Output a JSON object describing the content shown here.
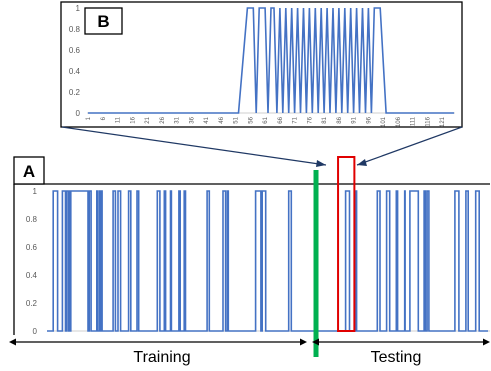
{
  "panels": {
    "a_label": "A",
    "b_label": "B"
  },
  "bottom_labels": {
    "training": "Training",
    "testing": "Testing"
  },
  "colors": {
    "series": "#4472C4",
    "split_line": "#00B050",
    "highlight_box": "#E00000",
    "arrow": "#1F3864"
  },
  "chart_data": [
    {
      "panel": "A",
      "type": "line",
      "y_ticks": [
        "0",
        "0.2",
        "0.4",
        "0.6",
        "0.8",
        "1"
      ],
      "ylim": [
        0,
        1
      ],
      "x_range": [
        0,
        1000
      ],
      "split_at_x": 610,
      "highlight_x_range": [
        660,
        697
      ],
      "series": [
        {
          "high_segments": [
            [
              14,
              24
            ],
            [
              35,
              42
            ],
            [
              44,
              48
            ],
            [
              50,
              52
            ],
            [
              54,
              93
            ],
            [
              96,
              100
            ],
            [
              113,
              115
            ],
            [
              119,
              120
            ],
            [
              123,
              125
            ],
            [
              150,
              155
            ],
            [
              161,
              167
            ],
            [
              185,
              190
            ],
            [
              204,
              208
            ],
            [
              250,
              256
            ],
            [
              266,
              269
            ],
            [
              280,
              282
            ],
            [
              299,
              302
            ],
            [
              311,
              314
            ],
            [
              363,
              368
            ],
            [
              399,
              405
            ],
            [
              409,
              411
            ],
            [
              473,
              485
            ],
            [
              488,
              496
            ],
            [
              548,
              554
            ],
            [
              677,
              686
            ],
            [
              700,
              702
            ],
            [
              749,
              755
            ],
            [
              770,
              777
            ],
            [
              792,
              795
            ],
            [
              811,
              812
            ],
            [
              823,
              842
            ],
            [
              855,
              858
            ],
            [
              862,
              866
            ],
            [
              925,
              934
            ],
            [
              950,
              955
            ],
            [
              972,
              980
            ]
          ]
        }
      ]
    },
    {
      "panel": "B",
      "type": "line",
      "x_ticks": [
        "1",
        "6",
        "11",
        "16",
        "21",
        "26",
        "31",
        "36",
        "41",
        "46",
        "51",
        "56",
        "61",
        "66",
        "71",
        "76",
        "81",
        "86",
        "91",
        "96",
        "101",
        "106",
        "111",
        "116",
        "121"
      ],
      "y_ticks": [
        "0",
        "0.2",
        "0.4",
        "0.6",
        "0.8",
        "1"
      ],
      "ylim": [
        0,
        1
      ],
      "x_range": [
        1,
        125
      ],
      "series": [
        {
          "points": [
            [
              1,
              0
            ],
            [
              52,
              0
            ],
            [
              55,
              1
            ],
            [
              57,
              1
            ],
            [
              58,
              0
            ],
            [
              59,
              1
            ],
            [
              61,
              1
            ],
            [
              62,
              0
            ],
            [
              63,
              1
            ],
            [
              64,
              1
            ],
            [
              65,
              0
            ],
            [
              66,
              1
            ],
            [
              67,
              0
            ],
            [
              68,
              1
            ],
            [
              69,
              0
            ],
            [
              70,
              1
            ],
            [
              71,
              0
            ],
            [
              72,
              1
            ],
            [
              73,
              0
            ],
            [
              74,
              1
            ],
            [
              75,
              0
            ],
            [
              76,
              1
            ],
            [
              77,
              0
            ],
            [
              78,
              1
            ],
            [
              79,
              0
            ],
            [
              80,
              1
            ],
            [
              81,
              0
            ],
            [
              82,
              1
            ],
            [
              83,
              0
            ],
            [
              84,
              1
            ],
            [
              85,
              0
            ],
            [
              86,
              1
            ],
            [
              87,
              0
            ],
            [
              88,
              1
            ],
            [
              89,
              0
            ],
            [
              90,
              1
            ],
            [
              91,
              0
            ],
            [
              92,
              1
            ],
            [
              93,
              0
            ],
            [
              94,
              1
            ],
            [
              95,
              0
            ],
            [
              96,
              1
            ],
            [
              97,
              0
            ],
            [
              98,
              1
            ],
            [
              100,
              1
            ],
            [
              102,
              0
            ],
            [
              125,
              0
            ]
          ]
        }
      ]
    }
  ]
}
